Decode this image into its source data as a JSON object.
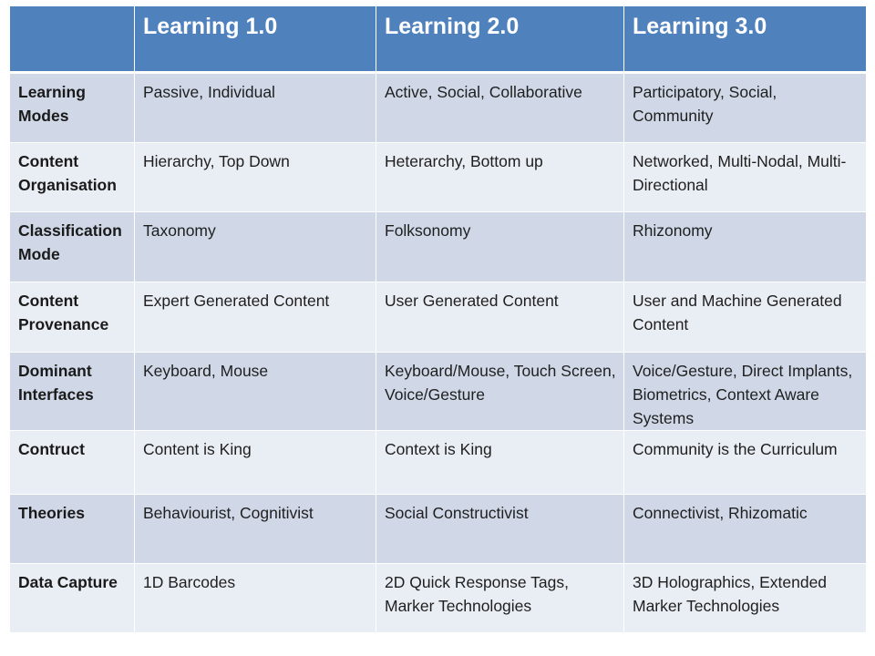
{
  "table": {
    "headers": [
      "",
      "Learning 1.0",
      "Learning 2.0",
      "Learning 3.0"
    ],
    "rows": [
      {
        "label": "Learning Modes",
        "cells": [
          "Passive, Individual",
          "Active, Social, Collaborative",
          "Participatory, Social, Community"
        ]
      },
      {
        "label": "Content Organisation",
        "cells": [
          "Hierarchy, Top Down",
          "Heterarchy, Bottom up",
          "Networked, Multi-Nodal, Multi-Directional"
        ]
      },
      {
        "label": "Classification Mode",
        "cells": [
          "Taxonomy",
          "Folksonomy",
          "Rhizonomy"
        ]
      },
      {
        "label": "Content Provenance",
        "cells": [
          "Expert Generated  Content",
          "User Generated  Content",
          "User and Machine Generated Content"
        ]
      },
      {
        "label": "Dominant Interfaces",
        "cells": [
          "Keyboard, Mouse",
          "Keyboard/Mouse, Touch Screen, Voice/Gesture",
          "Voice/Gesture,  Direct Implants, Biometrics, Context Aware Systems"
        ]
      },
      {
        "label": "Contruct",
        "cells": [
          "Content is King",
          "Context is King",
          "Community is the Curriculum"
        ]
      },
      {
        "label": "Theories",
        "cells": [
          "Behaviourist,  Cognitivist",
          "Social Constructivist",
          "Connectivist,  Rhizomatic"
        ]
      },
      {
        "label": "Data Capture",
        "cells": [
          "1D Barcodes",
          "2D Quick Response Tags, Marker Technologies",
          "3D Holographics,  Extended Marker Technologies"
        ]
      }
    ]
  },
  "colors": {
    "header": "#4f81bd",
    "row_dark": "#d0d8e8",
    "row_light": "#e9edf4"
  }
}
